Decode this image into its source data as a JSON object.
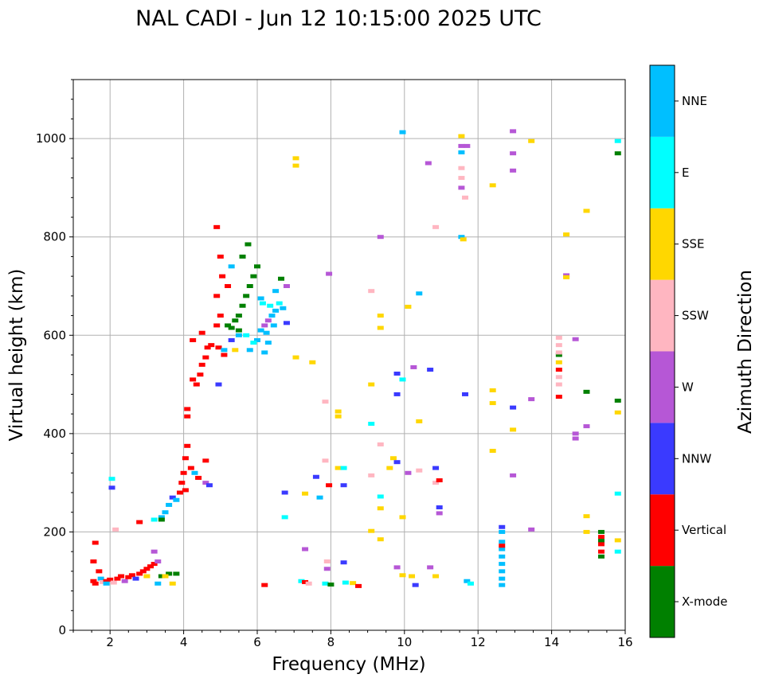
{
  "chart_data": {
    "type": "scatter",
    "title": "NAL CADI - Jun 12 10:15:00 2025 UTC",
    "xlabel": "Frequency (MHz)",
    "ylabel": "Virtual height (km)",
    "xlim": [
      1,
      16
    ],
    "ylim": [
      0,
      1120
    ],
    "grid": true,
    "x_ticks": [
      2,
      4,
      6,
      8,
      10,
      12,
      14,
      16
    ],
    "x_tick_labels": [
      "2",
      "4",
      "6",
      "8",
      "10",
      "12",
      "14",
      "16"
    ],
    "y_ticks": [
      0,
      200,
      400,
      600,
      800,
      1000
    ],
    "y_tick_labels": [
      "0",
      "200",
      "400",
      "600",
      "800",
      "1000"
    ],
    "colorbar": {
      "label": "Azimuth Direction",
      "categories": [
        "X-mode",
        "Vertical",
        "NNW",
        "W",
        "SSW",
        "SSE",
        "E",
        "NNE"
      ],
      "colors": [
        "#008000",
        "#ff0000",
        "#3a3aff",
        "#b657d6",
        "#ffb6c1",
        "#ffd700",
        "#00ffff",
        "#00bfff"
      ]
    },
    "echoes": [
      {
        "f": 1.55,
        "h": 100,
        "d": "Vertical"
      },
      {
        "f": 1.6,
        "h": 95,
        "d": "Vertical"
      },
      {
        "f": 1.55,
        "h": 140,
        "d": "Vertical"
      },
      {
        "f": 1.7,
        "h": 120,
        "d": "Vertical"
      },
      {
        "f": 1.75,
        "h": 105,
        "d": "NNE"
      },
      {
        "f": 1.6,
        "h": 178,
        "d": "Vertical"
      },
      {
        "f": 1.8,
        "h": 98,
        "d": "SSW"
      },
      {
        "f": 1.9,
        "h": 100,
        "d": "Vertical"
      },
      {
        "f": 2.0,
        "h": 103,
        "d": "Vertical"
      },
      {
        "f": 2.1,
        "h": 97,
        "d": "SSW"
      },
      {
        "f": 2.2,
        "h": 105,
        "d": "Vertical"
      },
      {
        "f": 2.3,
        "h": 110,
        "d": "Vertical"
      },
      {
        "f": 2.4,
        "h": 100,
        "d": "W"
      },
      {
        "f": 2.5,
        "h": 108,
        "d": "Vertical"
      },
      {
        "f": 2.6,
        "h": 112,
        "d": "Vertical"
      },
      {
        "f": 2.7,
        "h": 105,
        "d": "NNW"
      },
      {
        "f": 2.8,
        "h": 115,
        "d": "Vertical"
      },
      {
        "f": 2.9,
        "h": 120,
        "d": "Vertical"
      },
      {
        "f": 3.0,
        "h": 125,
        "d": "Vertical"
      },
      {
        "f": 3.1,
        "h": 130,
        "d": "Vertical"
      },
      {
        "f": 3.2,
        "h": 135,
        "d": "Vertical"
      },
      {
        "f": 3.3,
        "h": 140,
        "d": "W"
      },
      {
        "f": 3.2,
        "h": 160,
        "d": "W"
      },
      {
        "f": 3.4,
        "h": 110,
        "d": "X-mode"
      },
      {
        "f": 3.6,
        "h": 115,
        "d": "X-mode"
      },
      {
        "f": 3.8,
        "h": 115,
        "d": "X-mode"
      },
      {
        "f": 3.7,
        "h": 95,
        "d": "SSE"
      },
      {
        "f": 3.5,
        "h": 110,
        "d": "SSE"
      },
      {
        "f": 3.3,
        "h": 95,
        "d": "NNE"
      },
      {
        "f": 3.0,
        "h": 110,
        "d": "SSE"
      },
      {
        "f": 2.8,
        "h": 220,
        "d": "Vertical"
      },
      {
        "f": 3.2,
        "h": 225,
        "d": "E"
      },
      {
        "f": 3.4,
        "h": 230,
        "d": "NNE"
      },
      {
        "f": 3.5,
        "h": 240,
        "d": "NNE"
      },
      {
        "f": 3.6,
        "h": 255,
        "d": "NNE"
      },
      {
        "f": 3.7,
        "h": 270,
        "d": "NNW"
      },
      {
        "f": 3.8,
        "h": 265,
        "d": "NNE"
      },
      {
        "f": 3.9,
        "h": 280,
        "d": "Vertical"
      },
      {
        "f": 3.95,
        "h": 300,
        "d": "Vertical"
      },
      {
        "f": 4.05,
        "h": 285,
        "d": "Vertical"
      },
      {
        "f": 4.0,
        "h": 320,
        "d": "Vertical"
      },
      {
        "f": 4.05,
        "h": 350,
        "d": "Vertical"
      },
      {
        "f": 4.1,
        "h": 375,
        "d": "Vertical"
      },
      {
        "f": 4.2,
        "h": 330,
        "d": "Vertical"
      },
      {
        "f": 4.3,
        "h": 320,
        "d": "NNE"
      },
      {
        "f": 4.4,
        "h": 310,
        "d": "Vertical"
      },
      {
        "f": 4.6,
        "h": 300,
        "d": "W"
      },
      {
        "f": 4.7,
        "h": 295,
        "d": "NNW"
      },
      {
        "f": 4.6,
        "h": 345,
        "d": "Vertical"
      },
      {
        "f": 4.1,
        "h": 450,
        "d": "Vertical"
      },
      {
        "f": 4.1,
        "h": 435,
        "d": "Vertical"
      },
      {
        "f": 4.25,
        "h": 510,
        "d": "Vertical"
      },
      {
        "f": 4.35,
        "h": 500,
        "d": "Vertical"
      },
      {
        "f": 4.45,
        "h": 520,
        "d": "Vertical"
      },
      {
        "f": 4.5,
        "h": 540,
        "d": "Vertical"
      },
      {
        "f": 4.6,
        "h": 555,
        "d": "Vertical"
      },
      {
        "f": 4.65,
        "h": 575,
        "d": "Vertical"
      },
      {
        "f": 4.25,
        "h": 590,
        "d": "Vertical"
      },
      {
        "f": 4.5,
        "h": 605,
        "d": "Vertical"
      },
      {
        "f": 4.75,
        "h": 580,
        "d": "Vertical"
      },
      {
        "f": 4.9,
        "h": 620,
        "d": "Vertical"
      },
      {
        "f": 5.0,
        "h": 640,
        "d": "Vertical"
      },
      {
        "f": 4.9,
        "h": 680,
        "d": "Vertical"
      },
      {
        "f": 5.05,
        "h": 720,
        "d": "Vertical"
      },
      {
        "f": 5.0,
        "h": 760,
        "d": "Vertical"
      },
      {
        "f": 5.2,
        "h": 700,
        "d": "Vertical"
      },
      {
        "f": 5.1,
        "h": 560,
        "d": "Vertical"
      },
      {
        "f": 4.95,
        "h": 575,
        "d": "Vertical"
      },
      {
        "f": 4.9,
        "h": 820,
        "d": "Vertical"
      },
      {
        "f": 5.2,
        "h": 620,
        "d": "X-mode"
      },
      {
        "f": 5.3,
        "h": 615,
        "d": "X-mode"
      },
      {
        "f": 5.4,
        "h": 630,
        "d": "X-mode"
      },
      {
        "f": 5.5,
        "h": 610,
        "d": "X-mode"
      },
      {
        "f": 5.5,
        "h": 640,
        "d": "X-mode"
      },
      {
        "f": 5.6,
        "h": 660,
        "d": "X-mode"
      },
      {
        "f": 5.7,
        "h": 680,
        "d": "X-mode"
      },
      {
        "f": 5.8,
        "h": 700,
        "d": "X-mode"
      },
      {
        "f": 5.9,
        "h": 720,
        "d": "X-mode"
      },
      {
        "f": 5.75,
        "h": 785,
        "d": "X-mode"
      },
      {
        "f": 5.6,
        "h": 760,
        "d": "X-mode"
      },
      {
        "f": 6.0,
        "h": 740,
        "d": "X-mode"
      },
      {
        "f": 5.3,
        "h": 590,
        "d": "NNW"
      },
      {
        "f": 5.5,
        "h": 600,
        "d": "NNE"
      },
      {
        "f": 5.1,
        "h": 570,
        "d": "NNE"
      },
      {
        "f": 5.8,
        "h": 570,
        "d": "NNE"
      },
      {
        "f": 6.0,
        "h": 590,
        "d": "NNE"
      },
      {
        "f": 6.1,
        "h": 610,
        "d": "NNE"
      },
      {
        "f": 6.2,
        "h": 620,
        "d": "W"
      },
      {
        "f": 6.3,
        "h": 630,
        "d": "W"
      },
      {
        "f": 6.25,
        "h": 605,
        "d": "NNE"
      },
      {
        "f": 6.4,
        "h": 640,
        "d": "NNE"
      },
      {
        "f": 6.5,
        "h": 650,
        "d": "NNE"
      },
      {
        "f": 6.6,
        "h": 665,
        "d": "E"
      },
      {
        "f": 6.7,
        "h": 655,
        "d": "NNE"
      },
      {
        "f": 6.8,
        "h": 625,
        "d": "NNW"
      },
      {
        "f": 6.3,
        "h": 585,
        "d": "NNE"
      },
      {
        "f": 6.1,
        "h": 675,
        "d": "NNE"
      },
      {
        "f": 6.2,
        "h": 565,
        "d": "NNE"
      },
      {
        "f": 6.5,
        "h": 690,
        "d": "NNE"
      },
      {
        "f": 6.8,
        "h": 700,
        "d": "W"
      },
      {
        "f": 6.65,
        "h": 715,
        "d": "X-mode"
      },
      {
        "f": 5.3,
        "h": 740,
        "d": "NNE"
      },
      {
        "f": 5.7,
        "h": 600,
        "d": "E"
      },
      {
        "f": 5.9,
        "h": 585,
        "d": "E"
      },
      {
        "f": 5.4,
        "h": 570,
        "d": "SSE"
      },
      {
        "f": 6.15,
        "h": 665,
        "d": "E"
      },
      {
        "f": 6.35,
        "h": 660,
        "d": "E"
      },
      {
        "f": 6.45,
        "h": 620,
        "d": "NNE"
      },
      {
        "f": 4.95,
        "h": 500,
        "d": "NNW"
      },
      {
        "f": 1.9,
        "h": 95,
        "d": "NNE"
      },
      {
        "f": 2.05,
        "h": 290,
        "d": "NNW"
      },
      {
        "f": 2.05,
        "h": 308,
        "d": "E"
      },
      {
        "f": 2.15,
        "h": 205,
        "d": "SSW"
      },
      {
        "f": 3.4,
        "h": 225,
        "d": "X-mode"
      },
      {
        "f": 6.75,
        "h": 280,
        "d": "NNW"
      },
      {
        "f": 6.75,
        "h": 230,
        "d": "E"
      },
      {
        "f": 6.2,
        "h": 92,
        "d": "Vertical"
      },
      {
        "f": 7.05,
        "h": 960,
        "d": "SSE"
      },
      {
        "f": 7.05,
        "h": 945,
        "d": "SSE"
      },
      {
        "f": 7.05,
        "h": 555,
        "d": "SSE"
      },
      {
        "f": 7.5,
        "h": 545,
        "d": "SSE"
      },
      {
        "f": 7.3,
        "h": 165,
        "d": "W"
      },
      {
        "f": 7.3,
        "h": 278,
        "d": "SSE"
      },
      {
        "f": 7.6,
        "h": 312,
        "d": "NNW"
      },
      {
        "f": 7.7,
        "h": 270,
        "d": "NNE"
      },
      {
        "f": 7.2,
        "h": 100,
        "d": "E"
      },
      {
        "f": 7.3,
        "h": 98,
        "d": "Vertical"
      },
      {
        "f": 7.4,
        "h": 95,
        "d": "SSW"
      },
      {
        "f": 7.9,
        "h": 140,
        "d": "SSW"
      },
      {
        "f": 7.9,
        "h": 125,
        "d": "W"
      },
      {
        "f": 7.85,
        "h": 95,
        "d": "E"
      },
      {
        "f": 8.0,
        "h": 93,
        "d": "X-mode"
      },
      {
        "f": 7.95,
        "h": 725,
        "d": "W"
      },
      {
        "f": 7.85,
        "h": 465,
        "d": "SSW"
      },
      {
        "f": 7.85,
        "h": 345,
        "d": "SSW"
      },
      {
        "f": 7.95,
        "h": 295,
        "d": "Vertical"
      },
      {
        "f": 8.2,
        "h": 445,
        "d": "SSE"
      },
      {
        "f": 8.2,
        "h": 435,
        "d": "SSE"
      },
      {
        "f": 8.2,
        "h": 330,
        "d": "SSE"
      },
      {
        "f": 8.35,
        "h": 330,
        "d": "E"
      },
      {
        "f": 8.35,
        "h": 295,
        "d": "NNW"
      },
      {
        "f": 8.35,
        "h": 138,
        "d": "NNW"
      },
      {
        "f": 8.4,
        "h": 97,
        "d": "E"
      },
      {
        "f": 8.6,
        "h": 96,
        "d": "SSE"
      },
      {
        "f": 8.75,
        "h": 90,
        "d": "Vertical"
      },
      {
        "f": 9.1,
        "h": 690,
        "d": "SSW"
      },
      {
        "f": 9.1,
        "h": 500,
        "d": "SSE"
      },
      {
        "f": 9.1,
        "h": 420,
        "d": "E"
      },
      {
        "f": 9.1,
        "h": 315,
        "d": "SSW"
      },
      {
        "f": 9.1,
        "h": 202,
        "d": "SSE"
      },
      {
        "f": 9.35,
        "h": 800,
        "d": "W"
      },
      {
        "f": 9.35,
        "h": 640,
        "d": "SSE"
      },
      {
        "f": 9.35,
        "h": 615,
        "d": "SSE"
      },
      {
        "f": 9.35,
        "h": 378,
        "d": "SSW"
      },
      {
        "f": 9.35,
        "h": 272,
        "d": "E"
      },
      {
        "f": 9.35,
        "h": 248,
        "d": "SSE"
      },
      {
        "f": 9.35,
        "h": 185,
        "d": "SSE"
      },
      {
        "f": 9.6,
        "h": 330,
        "d": "SSE"
      },
      {
        "f": 9.7,
        "h": 350,
        "d": "SSE"
      },
      {
        "f": 9.8,
        "h": 342,
        "d": "NNW"
      },
      {
        "f": 9.8,
        "h": 128,
        "d": "W"
      },
      {
        "f": 9.8,
        "h": 522,
        "d": "NNW"
      },
      {
        "f": 9.8,
        "h": 480,
        "d": "NNW"
      },
      {
        "f": 9.95,
        "h": 1013,
        "d": "NNE"
      },
      {
        "f": 9.95,
        "h": 510,
        "d": "E"
      },
      {
        "f": 9.95,
        "h": 230,
        "d": "SSE"
      },
      {
        "f": 9.95,
        "h": 112,
        "d": "SSE"
      },
      {
        "f": 10.1,
        "h": 658,
        "d": "SSE"
      },
      {
        "f": 10.1,
        "h": 320,
        "d": "W"
      },
      {
        "f": 10.2,
        "h": 110,
        "d": "SSE"
      },
      {
        "f": 10.3,
        "h": 92,
        "d": "NNW"
      },
      {
        "f": 10.25,
        "h": 535,
        "d": "W"
      },
      {
        "f": 10.4,
        "h": 685,
        "d": "NNE"
      },
      {
        "f": 10.4,
        "h": 425,
        "d": "SSE"
      },
      {
        "f": 10.4,
        "h": 325,
        "d": "SSW"
      },
      {
        "f": 10.65,
        "h": 950,
        "d": "W"
      },
      {
        "f": 10.7,
        "h": 530,
        "d": "NNW"
      },
      {
        "f": 10.7,
        "h": 128,
        "d": "W"
      },
      {
        "f": 10.85,
        "h": 820,
        "d": "SSW"
      },
      {
        "f": 10.85,
        "h": 330,
        "d": "NNW"
      },
      {
        "f": 10.85,
        "h": 300,
        "d": "SSW"
      },
      {
        "f": 10.85,
        "h": 110,
        "d": "SSE"
      },
      {
        "f": 10.95,
        "h": 305,
        "d": "Vertical"
      },
      {
        "f": 10.95,
        "h": 250,
        "d": "NNW"
      },
      {
        "f": 10.95,
        "h": 238,
        "d": "W"
      },
      {
        "f": 11.55,
        "h": 1005,
        "d": "SSE"
      },
      {
        "f": 11.55,
        "h": 985,
        "d": "W"
      },
      {
        "f": 11.55,
        "h": 972,
        "d": "NNE"
      },
      {
        "f": 11.55,
        "h": 940,
        "d": "SSW"
      },
      {
        "f": 11.55,
        "h": 920,
        "d": "SSW"
      },
      {
        "f": 11.55,
        "h": 900,
        "d": "W"
      },
      {
        "f": 11.55,
        "h": 800,
        "d": "NNE"
      },
      {
        "f": 11.6,
        "h": 795,
        "d": "SSE"
      },
      {
        "f": 11.65,
        "h": 880,
        "d": "SSW"
      },
      {
        "f": 11.7,
        "h": 985,
        "d": "W"
      },
      {
        "f": 11.65,
        "h": 480,
        "d": "NNW"
      },
      {
        "f": 11.7,
        "h": 100,
        "d": "NNE"
      },
      {
        "f": 11.8,
        "h": 95,
        "d": "E"
      },
      {
        "f": 12.4,
        "h": 905,
        "d": "SSE"
      },
      {
        "f": 12.4,
        "h": 488,
        "d": "SSE"
      },
      {
        "f": 12.4,
        "h": 462,
        "d": "SSE"
      },
      {
        "f": 12.4,
        "h": 365,
        "d": "SSE"
      },
      {
        "f": 12.65,
        "h": 200,
        "d": "NNE"
      },
      {
        "f": 12.65,
        "h": 180,
        "d": "NNE"
      },
      {
        "f": 12.65,
        "h": 165,
        "d": "NNE"
      },
      {
        "f": 12.65,
        "h": 150,
        "d": "NNE"
      },
      {
        "f": 12.65,
        "h": 135,
        "d": "NNE"
      },
      {
        "f": 12.65,
        "h": 120,
        "d": "NNE"
      },
      {
        "f": 12.65,
        "h": 105,
        "d": "NNE"
      },
      {
        "f": 12.65,
        "h": 92,
        "d": "NNE"
      },
      {
        "f": 12.65,
        "h": 172,
        "d": "Vertical"
      },
      {
        "f": 12.65,
        "h": 210,
        "d": "NNW"
      },
      {
        "f": 12.95,
        "h": 1015,
        "d": "W"
      },
      {
        "f": 12.95,
        "h": 970,
        "d": "W"
      },
      {
        "f": 12.95,
        "h": 935,
        "d": "W"
      },
      {
        "f": 12.95,
        "h": 453,
        "d": "NNW"
      },
      {
        "f": 12.95,
        "h": 408,
        "d": "SSE"
      },
      {
        "f": 12.95,
        "h": 315,
        "d": "W"
      },
      {
        "f": 13.45,
        "h": 995,
        "d": "SSE"
      },
      {
        "f": 13.45,
        "h": 470,
        "d": "W"
      },
      {
        "f": 13.45,
        "h": 205,
        "d": "W"
      },
      {
        "f": 14.2,
        "h": 595,
        "d": "SSW"
      },
      {
        "f": 14.2,
        "h": 580,
        "d": "SSW"
      },
      {
        "f": 14.2,
        "h": 560,
        "d": "X-mode"
      },
      {
        "f": 14.2,
        "h": 545,
        "d": "SSE"
      },
      {
        "f": 14.2,
        "h": 530,
        "d": "Vertical"
      },
      {
        "f": 14.2,
        "h": 515,
        "d": "SSW"
      },
      {
        "f": 14.2,
        "h": 500,
        "d": "SSW"
      },
      {
        "f": 14.2,
        "h": 475,
        "d": "Vertical"
      },
      {
        "f": 14.2,
        "h": 565,
        "d": "SSW"
      },
      {
        "f": 14.4,
        "h": 805,
        "d": "SSE"
      },
      {
        "f": 14.4,
        "h": 722,
        "d": "W"
      },
      {
        "f": 14.4,
        "h": 718,
        "d": "SSE"
      },
      {
        "f": 14.65,
        "h": 592,
        "d": "W"
      },
      {
        "f": 14.65,
        "h": 400,
        "d": "W"
      },
      {
        "f": 14.65,
        "h": 390,
        "d": "W"
      },
      {
        "f": 14.95,
        "h": 485,
        "d": "X-mode"
      },
      {
        "f": 14.95,
        "h": 415,
        "d": "W"
      },
      {
        "f": 14.95,
        "h": 853,
        "d": "SSE"
      },
      {
        "f": 14.95,
        "h": 232,
        "d": "SSE"
      },
      {
        "f": 14.95,
        "h": 200,
        "d": "SSE"
      },
      {
        "f": 15.35,
        "h": 200,
        "d": "X-mode"
      },
      {
        "f": 15.35,
        "h": 190,
        "d": "Vertical"
      },
      {
        "f": 15.35,
        "h": 182,
        "d": "X-mode"
      },
      {
        "f": 15.35,
        "h": 175,
        "d": "Vertical"
      },
      {
        "f": 15.35,
        "h": 160,
        "d": "Vertical"
      },
      {
        "f": 15.35,
        "h": 150,
        "d": "X-mode"
      },
      {
        "f": 15.8,
        "h": 995,
        "d": "E"
      },
      {
        "f": 15.8,
        "h": 970,
        "d": "X-mode"
      },
      {
        "f": 15.8,
        "h": 467,
        "d": "X-mode"
      },
      {
        "f": 15.8,
        "h": 443,
        "d": "SSE"
      },
      {
        "f": 15.8,
        "h": 278,
        "d": "E"
      },
      {
        "f": 15.8,
        "h": 183,
        "d": "SSE"
      },
      {
        "f": 15.8,
        "h": 160,
        "d": "E"
      }
    ]
  }
}
